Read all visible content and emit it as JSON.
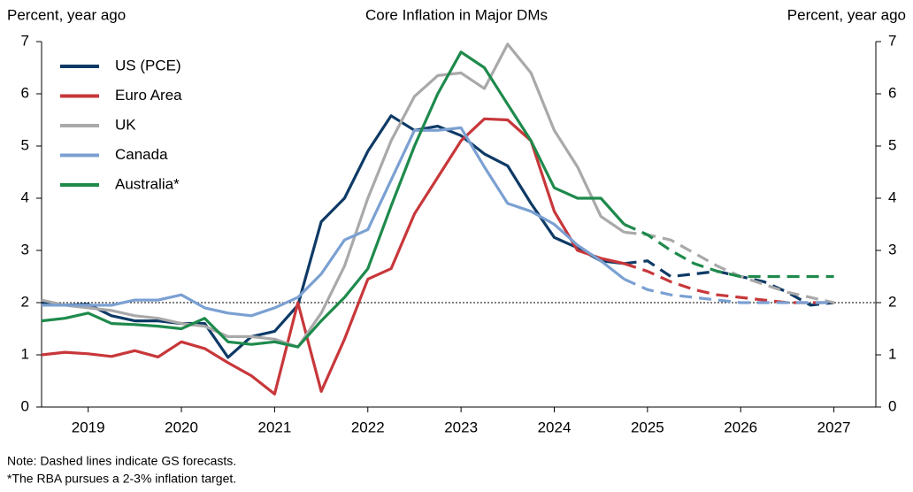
{
  "chart_data": {
    "type": "line",
    "title": "Core Inflation in Major DMs",
    "y_label": "Percent, year ago",
    "y2_label": "Percent, year ago",
    "notes": [
      "Note: Dashed lines indicate GS forecasts.",
      "*The RBA pursues a 2-3% inflation target."
    ],
    "x": [
      2018.5,
      2018.75,
      2019,
      2019.25,
      2019.5,
      2019.75,
      2020,
      2020.25,
      2020.5,
      2020.75,
      2021,
      2021.25,
      2021.5,
      2021.75,
      2022,
      2022.25,
      2022.5,
      2022.75,
      2023,
      2023.25,
      2023.5,
      2023.75,
      2024,
      2024.25,
      2024.5,
      2024.75,
      2025,
      2025.25,
      2025.5,
      2025.75,
      2026,
      2026.25,
      2026.5,
      2026.75,
      2027
    ],
    "xlim": [
      2018.5,
      2027.45
    ],
    "xticks": [
      2019,
      2020,
      2021,
      2022,
      2023,
      2024,
      2025,
      2026,
      2027
    ],
    "ylim": [
      0,
      7
    ],
    "yticks": [
      0,
      1,
      2,
      3,
      4,
      5,
      6,
      7
    ],
    "y2lim": [
      0,
      7
    ],
    "y2ticks": [
      0,
      1,
      2,
      3,
      4,
      5,
      6,
      7
    ],
    "reference_line": 2,
    "legend": "top-left",
    "forecast_dashed": true,
    "series": [
      {
        "name": "US (PCE)",
        "color": "#0e3a66",
        "values": [
          2.0,
          1.95,
          1.97,
          1.75,
          1.65,
          1.65,
          1.6,
          1.6,
          0.95,
          1.35,
          1.45,
          1.95,
          3.55,
          4.0,
          4.9,
          5.58,
          5.3,
          5.38,
          5.2,
          4.85,
          4.62,
          3.9,
          3.25,
          3.05,
          2.8,
          2.75,
          null,
          null,
          null,
          null,
          null,
          null,
          null,
          null,
          null
        ],
        "forecast": [
          null,
          null,
          null,
          null,
          null,
          null,
          null,
          null,
          null,
          null,
          null,
          null,
          null,
          null,
          null,
          null,
          null,
          null,
          null,
          null,
          null,
          null,
          null,
          null,
          null,
          2.75,
          2.8,
          2.5,
          2.55,
          2.6,
          2.5,
          2.4,
          2.2,
          1.95,
          2.0
        ]
      },
      {
        "name": "Euro Area",
        "color": "#c8373a",
        "values": [
          1.0,
          1.05,
          1.02,
          0.97,
          1.08,
          0.96,
          1.25,
          1.12,
          0.85,
          0.6,
          0.25,
          2.0,
          0.3,
          1.3,
          2.45,
          2.65,
          3.7,
          4.4,
          5.1,
          5.52,
          5.5,
          5.1,
          3.75,
          3.0,
          2.85,
          2.75,
          null,
          null,
          null,
          null,
          null,
          null,
          null,
          null,
          null
        ],
        "forecast": [
          null,
          null,
          null,
          null,
          null,
          null,
          null,
          null,
          null,
          null,
          null,
          null,
          null,
          null,
          null,
          null,
          null,
          null,
          null,
          null,
          null,
          null,
          null,
          null,
          null,
          2.75,
          2.6,
          2.4,
          2.25,
          2.15,
          2.1,
          2.05,
          2.0,
          2.0,
          2.0
        ]
      },
      {
        "name": "UK",
        "color": "#a9a9a9",
        "values": [
          2.05,
          1.95,
          1.9,
          1.85,
          1.75,
          1.7,
          1.6,
          1.55,
          1.35,
          1.35,
          1.3,
          1.15,
          1.8,
          2.7,
          4.0,
          5.1,
          5.95,
          6.35,
          6.4,
          6.1,
          6.95,
          6.4,
          5.3,
          4.6,
          3.65,
          3.35,
          null,
          null,
          null,
          null,
          null,
          null,
          null,
          null,
          null
        ],
        "forecast": [
          null,
          null,
          null,
          null,
          null,
          null,
          null,
          null,
          null,
          null,
          null,
          null,
          null,
          null,
          null,
          null,
          null,
          null,
          null,
          null,
          null,
          null,
          null,
          null,
          null,
          3.35,
          3.3,
          3.2,
          2.95,
          2.7,
          2.5,
          2.35,
          2.2,
          2.1,
          2.0
        ]
      },
      {
        "name": "Canada",
        "color": "#7ba0d2",
        "values": [
          1.95,
          1.95,
          1.95,
          1.95,
          2.05,
          2.05,
          2.15,
          1.9,
          1.8,
          1.75,
          1.9,
          2.1,
          2.55,
          3.2,
          3.4,
          4.35,
          5.3,
          5.3,
          5.35,
          4.6,
          3.9,
          3.75,
          3.5,
          3.1,
          2.8,
          2.45,
          null,
          null,
          null,
          null,
          null,
          null,
          null,
          null,
          null
        ],
        "forecast": [
          null,
          null,
          null,
          null,
          null,
          null,
          null,
          null,
          null,
          null,
          null,
          null,
          null,
          null,
          null,
          null,
          null,
          null,
          null,
          null,
          null,
          null,
          null,
          null,
          null,
          2.45,
          2.25,
          2.15,
          2.1,
          2.05,
          2.0,
          2.0,
          2.0,
          2.0,
          2.0
        ]
      },
      {
        "name": "Australia*",
        "color": "#1e8a4c",
        "values": [
          1.65,
          1.7,
          1.8,
          1.6,
          1.58,
          1.55,
          1.5,
          1.7,
          1.25,
          1.2,
          1.25,
          1.15,
          1.65,
          2.1,
          2.65,
          3.85,
          5.0,
          6.0,
          6.8,
          6.5,
          5.8,
          5.1,
          4.2,
          4.0,
          4.0,
          3.5,
          null,
          null,
          null,
          null,
          null,
          null,
          null,
          null,
          null
        ],
        "forecast": [
          null,
          null,
          null,
          null,
          null,
          null,
          null,
          null,
          null,
          null,
          null,
          null,
          null,
          null,
          null,
          null,
          null,
          null,
          null,
          null,
          null,
          null,
          null,
          null,
          null,
          3.5,
          3.3,
          3.0,
          2.75,
          2.6,
          2.5,
          2.5,
          2.5,
          2.5,
          2.5
        ]
      }
    ]
  }
}
